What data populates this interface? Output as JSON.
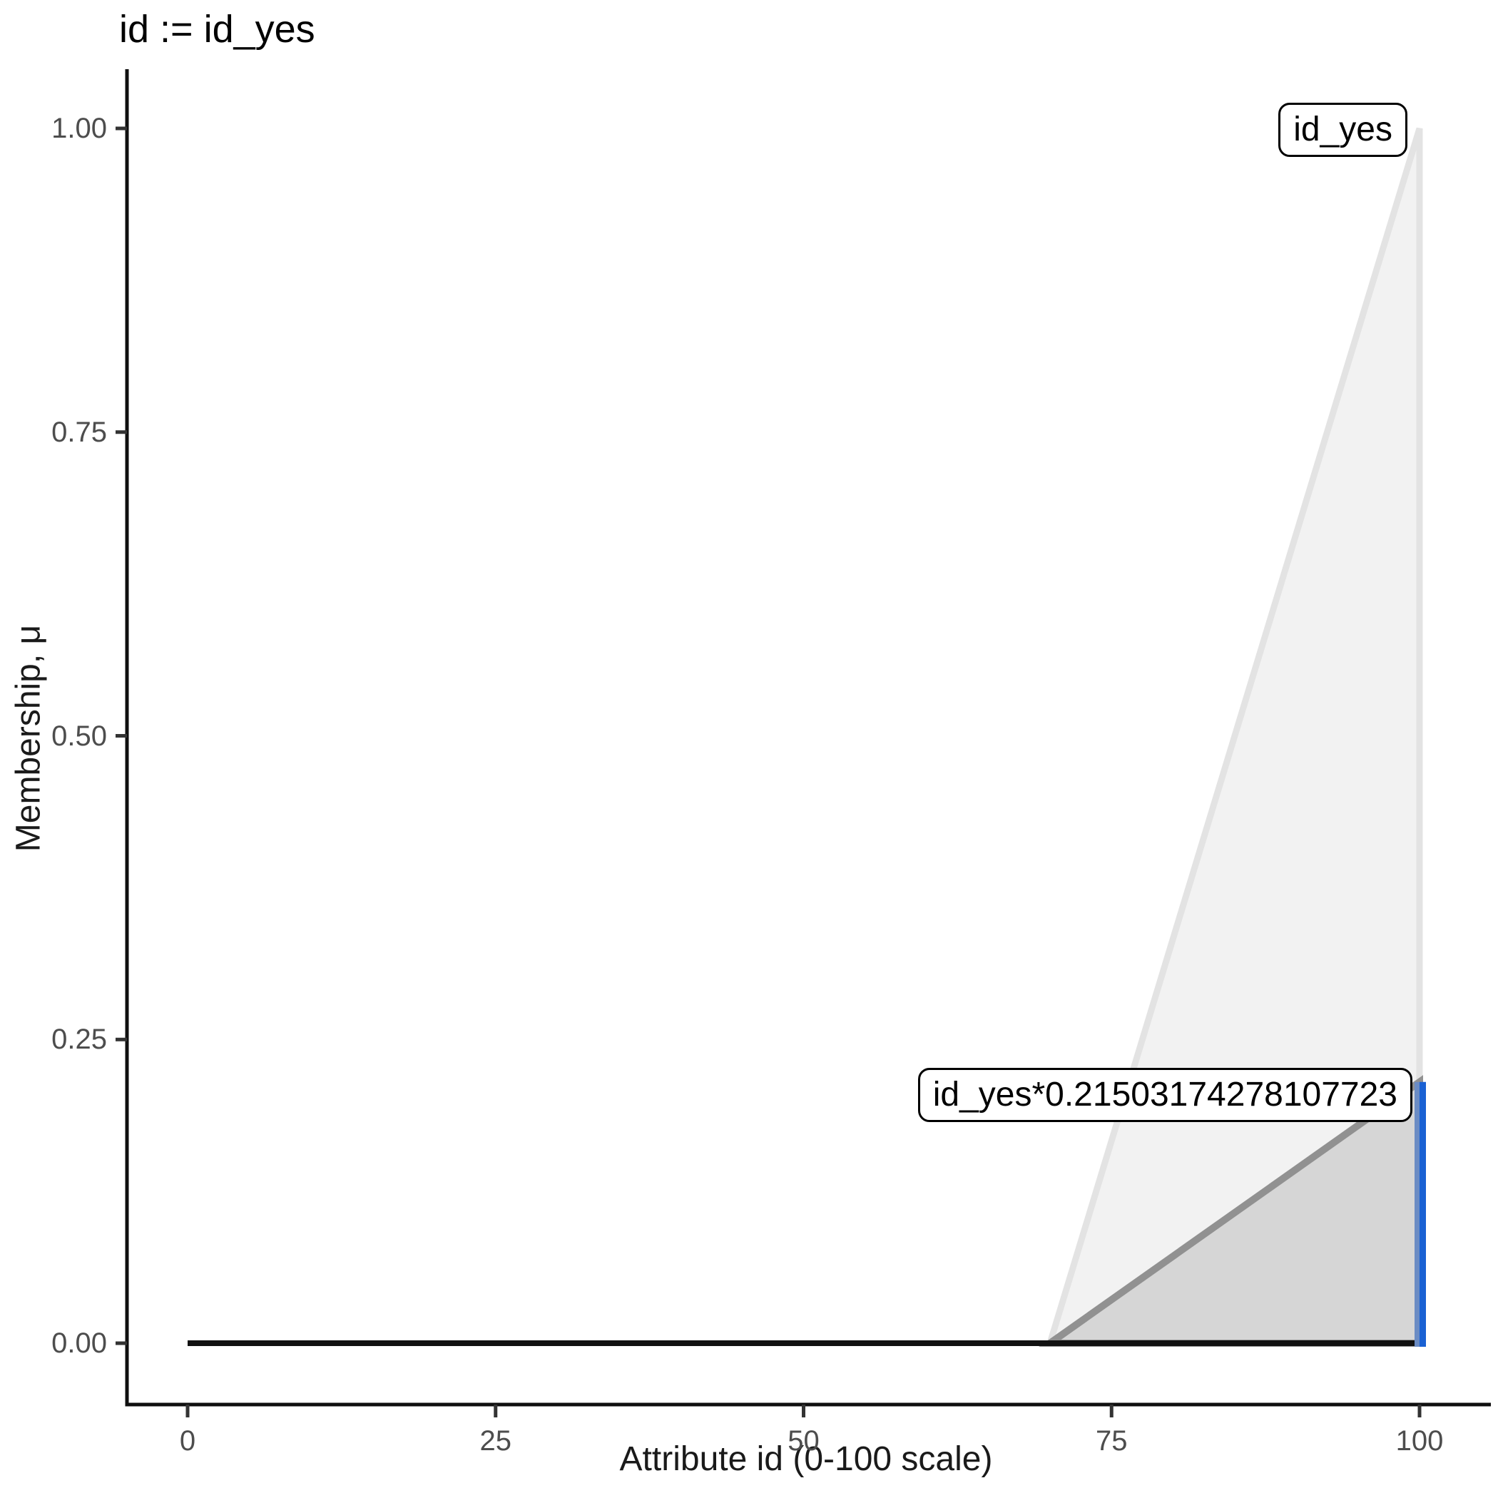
{
  "chart_data": {
    "type": "area",
    "title": "id := id_yes",
    "xlabel": "Attribute id (0-100 scale)",
    "ylabel": "Membership, μ",
    "xlim": [
      0,
      100
    ],
    "ylim": [
      0,
      1
    ],
    "grid": false,
    "legend_position": "none",
    "x_ticks": {
      "values": [
        0,
        25,
        50,
        75,
        100
      ],
      "labels": [
        "0",
        "25",
        "50",
        "75",
        "100"
      ]
    },
    "y_ticks": {
      "values": [
        0,
        0.25,
        0.5,
        0.75,
        1.0
      ],
      "labels": [
        "0.00",
        "0.25",
        "0.50",
        "0.75",
        "1.00"
      ]
    },
    "series": [
      {
        "name": "id_yes-membership-triangle",
        "kind": "filled-triangle",
        "points": [
          [
            70,
            0
          ],
          [
            100,
            1
          ],
          [
            100,
            0
          ]
        ],
        "fill": "#f2f2f2",
        "stroke": "#e3e3e3",
        "stroke_width": 9
      },
      {
        "name": "id_yes-scaled-triangle",
        "kind": "filled-triangle",
        "points": [
          [
            70,
            0
          ],
          [
            100,
            0.21503174278107723
          ],
          [
            100,
            0
          ]
        ],
        "fill": "#d6d6d6",
        "stroke": "#919191",
        "stroke_width": 10
      },
      {
        "name": "zero-membership-baseline",
        "kind": "line",
        "points": [
          [
            0,
            0
          ],
          [
            100,
            0
          ]
        ],
        "stroke": "#111111",
        "stroke_width": 8
      },
      {
        "name": "activation-segment",
        "kind": "vline",
        "x": 100,
        "y0": 0,
        "y1": 0.21503174278107723,
        "stroke": "#1a61d3",
        "stroke_width": 9,
        "companion_stroke": "#6b8cc4",
        "companion_width": 7
      }
    ],
    "annotations": [
      {
        "id": "label-id-yes",
        "text": "id_yes",
        "anchor_x": 100,
        "anchor_y": 1.0
      },
      {
        "id": "label-id-yes-scaled",
        "text": "id_yes*0.21503174278107723",
        "anchor_x": 100,
        "anchor_y": 0.21503174278107723
      }
    ],
    "axis_color": "#0f0f0f",
    "tick_color": "#333333",
    "tick_label_color": "#4d4d4d"
  }
}
